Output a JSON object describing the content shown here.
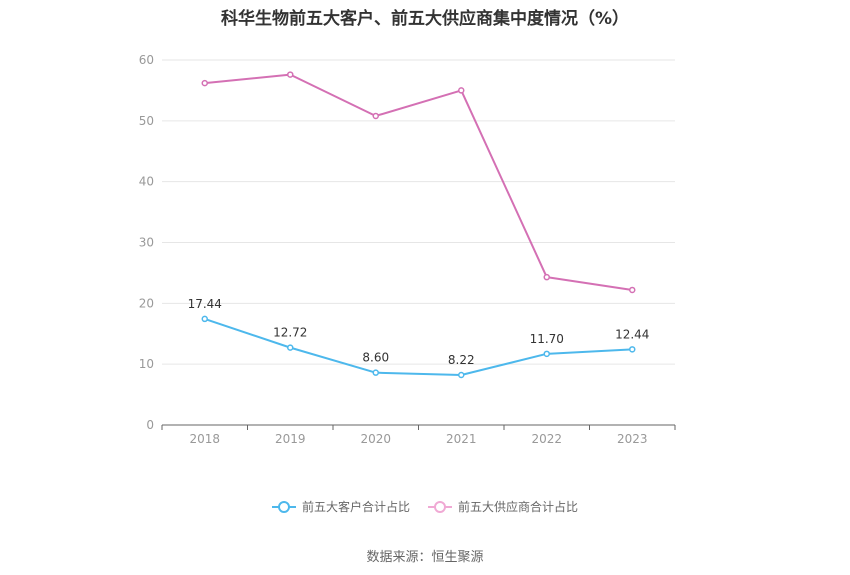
{
  "chart_data": {
    "type": "line",
    "title": "科华生物前五大客户、前五大供应商集中度情况（%）",
    "categories": [
      "2018",
      "2019",
      "2020",
      "2021",
      "2022",
      "2023"
    ],
    "y_ticks": [
      "0",
      "10",
      "20",
      "30",
      "40",
      "50",
      "60"
    ],
    "ylim": [
      0,
      60
    ],
    "grid": true,
    "legend_position": "bottom",
    "series": [
      {
        "name": "前五大客户合计占比",
        "color": "#4db8ec",
        "values": [
          17.44,
          12.72,
          8.6,
          8.22,
          11.7,
          12.44
        ],
        "labels": [
          "17.44",
          "12.72",
          "8.60",
          "8.22",
          "11.70",
          "12.44"
        ]
      },
      {
        "name": "前五大供应商合计占比",
        "color": "#d470b4",
        "values": [
          56.2,
          57.6,
          50.8,
          55.0,
          24.3,
          22.2
        ]
      }
    ]
  },
  "source": "数据来源：恒生聚源"
}
